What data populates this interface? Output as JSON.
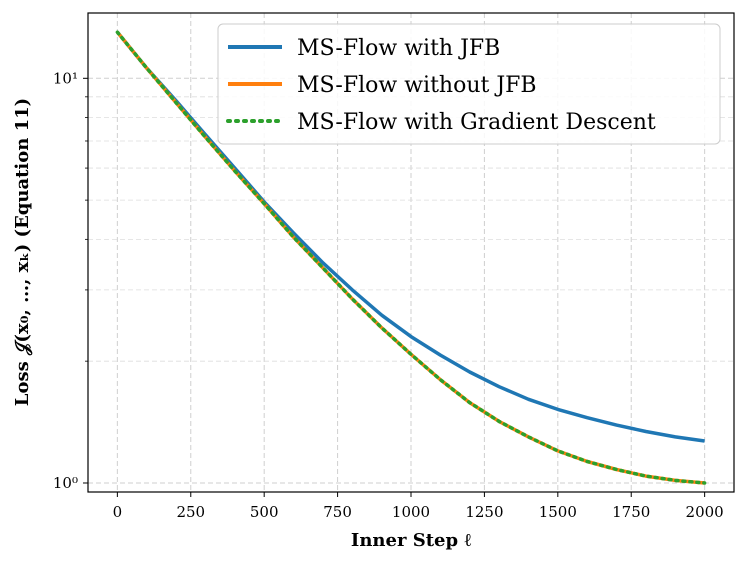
{
  "chart_data": {
    "type": "line",
    "xlabel": "Inner Step ℓ",
    "ylabel": "Loss 𝒥(x₀, …, xₖ) (Equation 11)",
    "xlim": [
      -100,
      2100
    ],
    "ylim": [
      0.95,
      14.5
    ],
    "yscale": "log",
    "grid": true,
    "legend_position": "top-right",
    "x_ticks": [
      0,
      250,
      500,
      750,
      1000,
      1250,
      1500,
      1750,
      2000
    ],
    "x_tick_labels": [
      "0",
      "250",
      "500",
      "750",
      "1000",
      "1250",
      "1500",
      "1750",
      "2000"
    ],
    "y_ticks": [
      1,
      10
    ],
    "y_tick_labels": [
      "10⁰",
      "10¹"
    ],
    "x": [
      0,
      100,
      200,
      300,
      400,
      500,
      600,
      700,
      800,
      900,
      1000,
      1100,
      1200,
      1300,
      1400,
      1500,
      1600,
      1700,
      1800,
      1900,
      2000
    ],
    "series": [
      {
        "name": "MS-Flow with JFB",
        "color": "#1f77b4",
        "style": "solid",
        "values": [
          13.0,
          10.6,
          8.8,
          7.25,
          6.0,
          4.95,
          4.15,
          3.5,
          3.0,
          2.6,
          2.3,
          2.07,
          1.88,
          1.73,
          1.61,
          1.52,
          1.45,
          1.39,
          1.34,
          1.3,
          1.27
        ]
      },
      {
        "name": "MS-Flow without JFB",
        "color": "#ff7f0e",
        "style": "solid",
        "values": [
          13.0,
          10.6,
          8.7,
          7.15,
          5.9,
          4.9,
          4.05,
          3.4,
          2.85,
          2.42,
          2.08,
          1.8,
          1.58,
          1.42,
          1.3,
          1.2,
          1.13,
          1.08,
          1.04,
          1.015,
          1.0
        ]
      },
      {
        "name": "MS-Flow with Gradient Descent",
        "color": "#2ca02c",
        "style": "dotted",
        "values": [
          13.0,
          10.6,
          8.7,
          7.15,
          5.9,
          4.9,
          4.05,
          3.4,
          2.85,
          2.42,
          2.08,
          1.8,
          1.58,
          1.42,
          1.3,
          1.2,
          1.13,
          1.08,
          1.04,
          1.015,
          1.0
        ]
      }
    ]
  }
}
